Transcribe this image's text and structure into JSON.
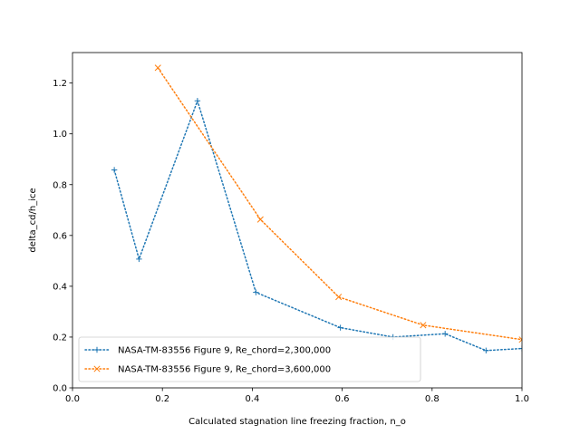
{
  "chart_data": {
    "type": "line",
    "title": "",
    "xlabel": "Calculated stagnation line freezing fraction, n_o",
    "ylabel": "delta_cd/h_ice",
    "xlim": [
      0.0,
      1.0
    ],
    "ylim": [
      0.0,
      1.32
    ],
    "xticks": [
      0.0,
      0.2,
      0.4,
      0.6,
      0.8,
      1.0
    ],
    "xtick_labels": [
      "0.0",
      "0.2",
      "0.4",
      "0.6",
      "0.8",
      "1.0"
    ],
    "yticks": [
      0.0,
      0.2,
      0.4,
      0.6,
      0.8,
      1.0,
      1.2
    ],
    "ytick_labels": [
      "0.0",
      "0.2",
      "0.4",
      "0.6",
      "0.8",
      "1.0",
      "1.2"
    ],
    "grid": false,
    "legend_position": "lower-left",
    "series": [
      {
        "name": "NASA-TM-83556 Figure 9, Re_chord=2,300,000",
        "color": "#1f77b4",
        "marker": "plus",
        "linestyle": "dotted",
        "x": [
          0.093,
          0.148,
          0.278,
          0.408,
          0.596,
          0.713,
          0.829,
          0.92,
          1.0
        ],
        "y": [
          0.858,
          0.507,
          1.13,
          0.376,
          0.237,
          0.2,
          0.213,
          0.147,
          0.155
        ]
      },
      {
        "name": "NASA-TM-83556 Figure 9, Re_chord=3,600,000",
        "color": "#ff7f0e",
        "marker": "x",
        "linestyle": "dotted",
        "x": [
          0.19,
          0.418,
          0.592,
          0.78,
          1.0
        ],
        "y": [
          1.26,
          0.663,
          0.358,
          0.247,
          0.19
        ]
      }
    ]
  }
}
